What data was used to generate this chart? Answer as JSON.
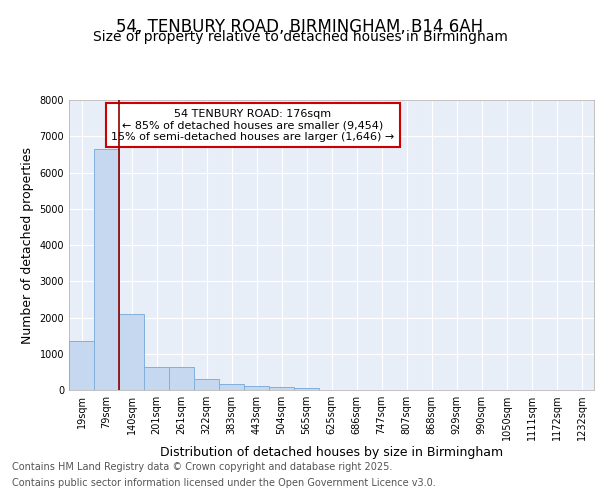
{
  "title1": "54, TENBURY ROAD, BIRMINGHAM, B14 6AH",
  "title2": "Size of property relative to detached houses in Birmingham",
  "xlabel": "Distribution of detached houses by size in Birmingham",
  "ylabel": "Number of detached properties",
  "categories": [
    "19sqm",
    "79sqm",
    "140sqm",
    "201sqm",
    "261sqm",
    "322sqm",
    "383sqm",
    "443sqm",
    "504sqm",
    "565sqm",
    "625sqm",
    "686sqm",
    "747sqm",
    "807sqm",
    "868sqm",
    "929sqm",
    "990sqm",
    "1050sqm",
    "1111sqm",
    "1172sqm",
    "1232sqm"
  ],
  "values": [
    1340,
    6660,
    2090,
    640,
    630,
    310,
    155,
    110,
    80,
    50,
    0,
    0,
    0,
    0,
    0,
    0,
    0,
    0,
    0,
    0,
    0
  ],
  "bar_color": "#c5d8f0",
  "bar_edge_color": "#7fb0dc",
  "vline_color": "#8b0000",
  "annotation_title": "54 TENBURY ROAD: 176sqm",
  "annotation_line1": "← 85% of detached houses are smaller (9,454)",
  "annotation_line2": "15% of semi-detached houses are larger (1,646) →",
  "annotation_box_color": "#cc0000",
  "ylim": [
    0,
    8000
  ],
  "yticks": [
    0,
    1000,
    2000,
    3000,
    4000,
    5000,
    6000,
    7000,
    8000
  ],
  "background_color": "#ffffff",
  "plot_bg_color": "#e8eef8",
  "grid_color": "#ffffff",
  "footer1": "Contains HM Land Registry data © Crown copyright and database right 2025.",
  "footer2": "Contains public sector information licensed under the Open Government Licence v3.0.",
  "title_fontsize": 12,
  "subtitle_fontsize": 10,
  "label_fontsize": 9,
  "tick_fontsize": 7,
  "footer_fontsize": 7,
  "annot_fontsize": 8
}
